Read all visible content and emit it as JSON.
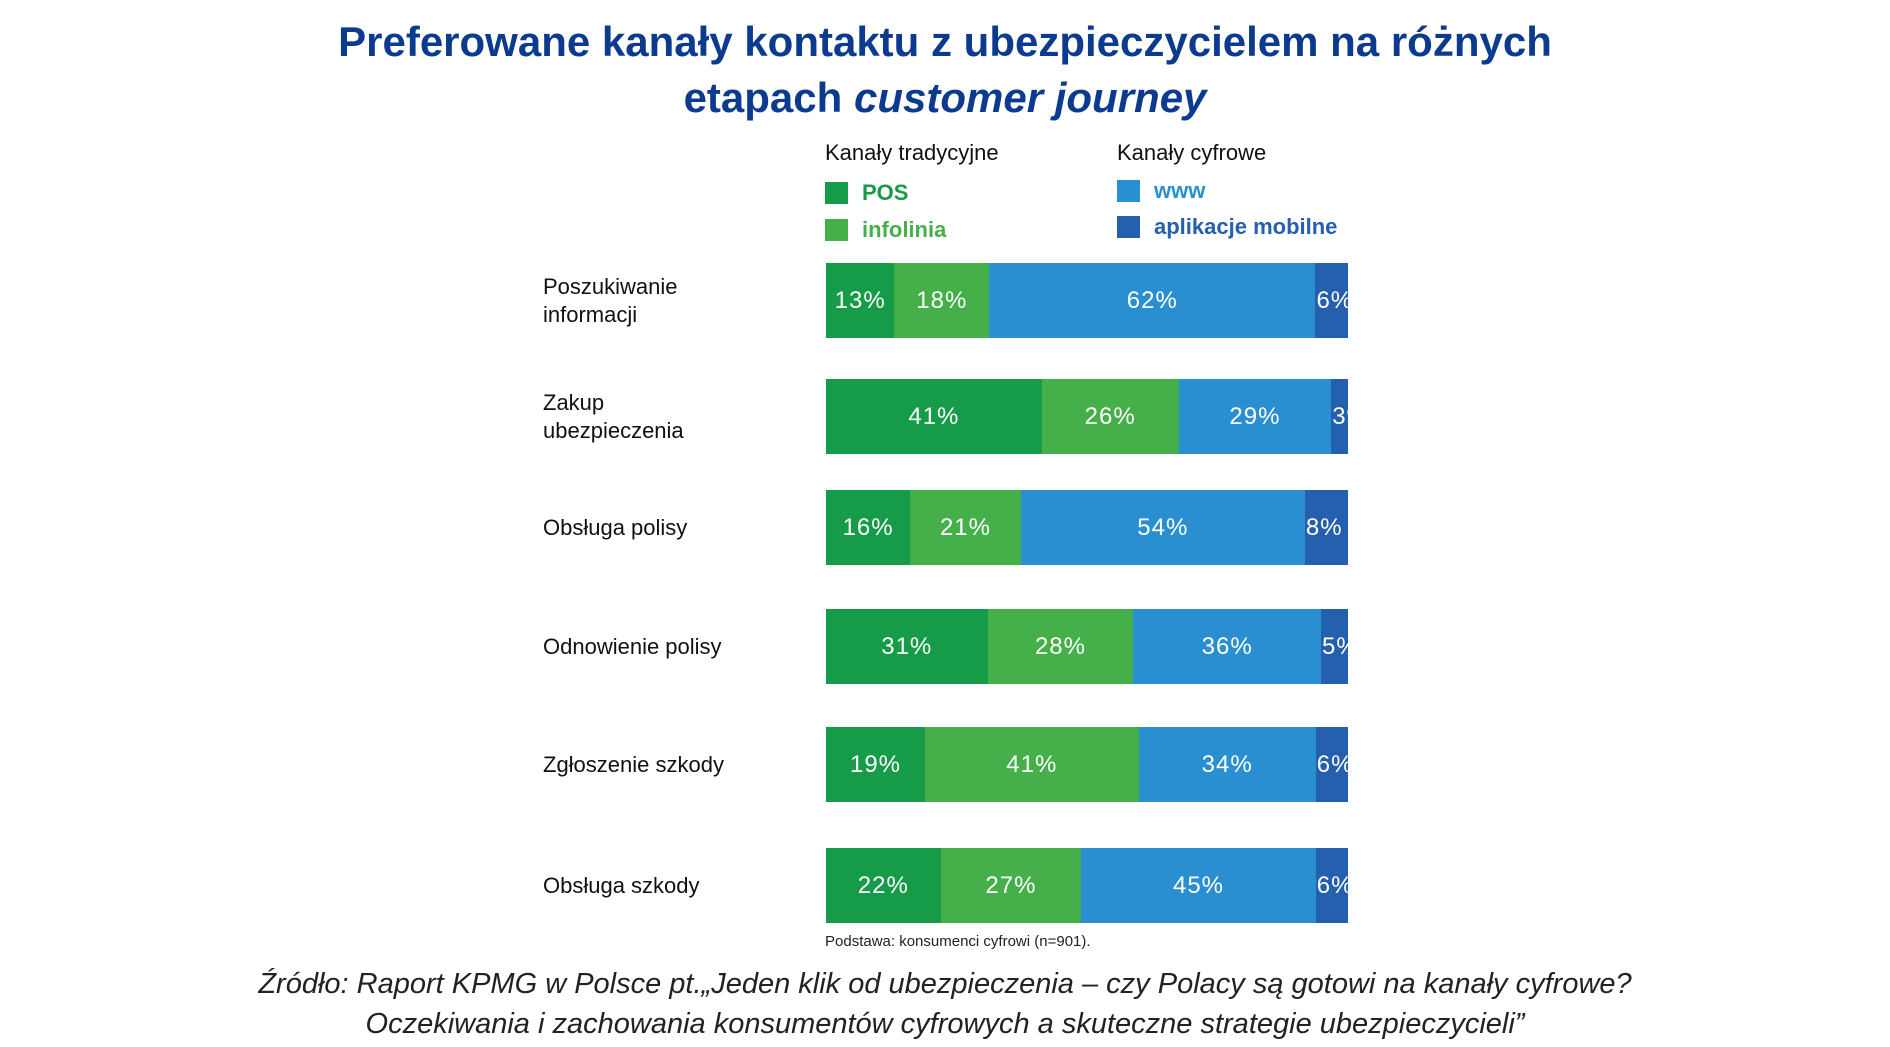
{
  "title_line1": "Preferowane kanały kontaktu z ubezpieczycielem na różnych",
  "title_line2_plain": "etapach ",
  "title_line2_italic": "customer journey",
  "legend": {
    "traditional_heading": "Kanały tradycyjne",
    "digital_heading": "Kanały cyfrowe"
  },
  "chart_data": {
    "type": "bar",
    "orientation": "horizontal",
    "stacked": true,
    "title": "Preferowane kanały kontaktu z ubezpieczycielem na różnych etapach customer journey",
    "categories": [
      "Poszukiwanie informacji",
      "Zakup ubezpieczenia",
      "Obsługa polisy",
      "Odnowienie polisy",
      "Zgłoszenie szkody",
      "Obsługa szkody"
    ],
    "unit": "%",
    "series": [
      {
        "name": "POS",
        "color": "#169B48",
        "values": [
          13,
          41,
          16,
          31,
          19,
          22
        ]
      },
      {
        "name": "infolinia",
        "color": "#45B04A",
        "values": [
          18,
          26,
          21,
          28,
          41,
          27
        ]
      },
      {
        "name": "www",
        "color": "#2A8FD1",
        "values": [
          62,
          29,
          54,
          36,
          34,
          45
        ]
      },
      {
        "name": "aplikacje mobilne",
        "color": "#2460AD",
        "values": [
          6,
          3,
          8,
          5,
          6,
          6
        ]
      }
    ],
    "legend": "top"
  },
  "footnote": "Podstawa: konsumenci cyfrowi (n=901).",
  "source_line1": "Źródło: Raport KPMG w Polsce pt.„Jeden klik od ubezpieczenia – czy Polacy są gotowi na kanały cyfrowe?",
  "source_line2": "Oczekiwania i zachowania konsumentów cyfrowych a skuteczne strategie ubezpieczycieli”"
}
